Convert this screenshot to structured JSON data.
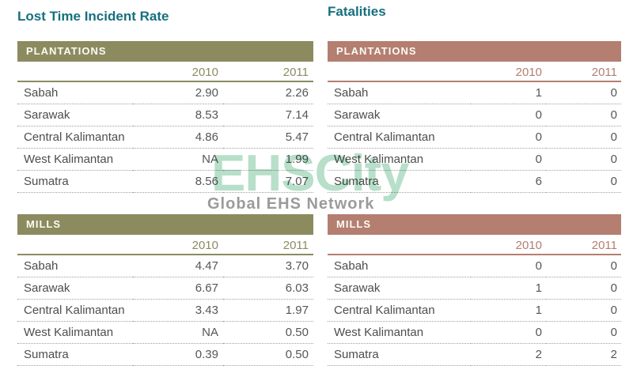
{
  "colors": {
    "title_teal": "#16707e",
    "accent_left_olive": "#8c8b60",
    "accent_right_rose": "#b47e71",
    "watermark_green": "#b7dfc9"
  },
  "watermark": {
    "brand": "EHSCity",
    "tagline": "Global EHS Network"
  },
  "left_panel": {
    "title": "Lost Time Incident Rate",
    "tables": [
      {
        "header": "PLANTATIONS",
        "columns": [
          "2010",
          "2011"
        ],
        "rows": [
          {
            "region": "Sabah",
            "y2010": "2.90",
            "y2011": "2.26"
          },
          {
            "region": "Sarawak",
            "y2010": "8.53",
            "y2011": "7.14"
          },
          {
            "region": "Central Kalimantan",
            "y2010": "4.86",
            "y2011": "5.47"
          },
          {
            "region": "West Kalimantan",
            "y2010": "NA",
            "y2011": "1.99"
          },
          {
            "region": "Sumatra",
            "y2010": "8.56",
            "y2011": "7.07"
          }
        ]
      },
      {
        "header": "MILLS",
        "columns": [
          "2010",
          "2011"
        ],
        "rows": [
          {
            "region": "Sabah",
            "y2010": "4.47",
            "y2011": "3.70"
          },
          {
            "region": "Sarawak",
            "y2010": "6.67",
            "y2011": "6.03"
          },
          {
            "region": "Central Kalimantan",
            "y2010": "3.43",
            "y2011": "1.97"
          },
          {
            "region": "West Kalimantan",
            "y2010": "NA",
            "y2011": "0.50"
          },
          {
            "region": "Sumatra",
            "y2010": "0.39",
            "y2011": "0.50"
          }
        ]
      }
    ]
  },
  "right_panel": {
    "title": "Fatalities",
    "tables": [
      {
        "header": "PLANTATIONS",
        "columns": [
          "2010",
          "2011"
        ],
        "rows": [
          {
            "region": "Sabah",
            "y2010": "1",
            "y2011": "0"
          },
          {
            "region": "Sarawak",
            "y2010": "0",
            "y2011": "0"
          },
          {
            "region": "Central Kalimantan",
            "y2010": "0",
            "y2011": "0"
          },
          {
            "region": "West Kalimantan",
            "y2010": "0",
            "y2011": "0"
          },
          {
            "region": "Sumatra",
            "y2010": "6",
            "y2011": "0"
          }
        ]
      },
      {
        "header": "MILLS",
        "columns": [
          "2010",
          "2011"
        ],
        "rows": [
          {
            "region": "Sabah",
            "y2010": "0",
            "y2011": "0"
          },
          {
            "region": "Sarawak",
            "y2010": "1",
            "y2011": "0"
          },
          {
            "region": "Central Kalimantan",
            "y2010": "1",
            "y2011": "0"
          },
          {
            "region": "West Kalimantan",
            "y2010": "0",
            "y2011": "0"
          },
          {
            "region": "Sumatra",
            "y2010": "2",
            "y2011": "2"
          }
        ]
      }
    ]
  }
}
